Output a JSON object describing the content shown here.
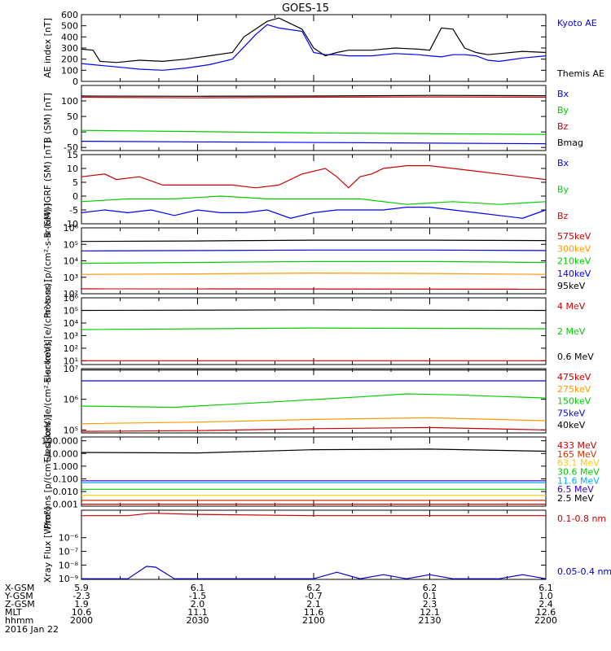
{
  "title": "GOES-15",
  "footer": {
    "row_labels": [
      "X-GSM",
      "Y-GSM",
      "Z-GSM",
      "MLT",
      "hhmm"
    ],
    "date": "2016 Jan 22",
    "columns": [
      [
        "5.9",
        "-2.3",
        "1.9",
        "10.6",
        "2000"
      ],
      [
        "6.1",
        "-1.5",
        "2.0",
        "11.1",
        "2030"
      ],
      [
        "6.2",
        "-0.7",
        "2.1",
        "11.6",
        "2100"
      ],
      [
        "6.2",
        "0.1",
        "2.3",
        "12.1",
        "2130"
      ],
      [
        "6.1",
        "1.0",
        "2.4",
        "12.6",
        "2200"
      ]
    ]
  },
  "chart_data": [
    {
      "type": "line",
      "ylabel": "AE index [nT]",
      "ylim": [
        0,
        600
      ],
      "yticks": [
        "0",
        "100",
        "200",
        "300",
        "400",
        "500",
        "600"
      ],
      "x_range": [
        "2000",
        "2200"
      ],
      "series": [
        {
          "name": "Kyoto AE",
          "color": "#0000ff",
          "x": [
            0,
            5,
            15,
            25,
            35,
            45,
            55,
            65,
            75,
            80,
            85,
            95,
            100,
            105,
            110,
            115,
            125,
            135,
            145,
            150,
            155,
            160,
            165,
            170,
            175,
            180,
            190,
            200
          ],
          "values": [
            160,
            150,
            130,
            110,
            100,
            120,
            150,
            200,
            420,
            510,
            480,
            450,
            260,
            240,
            240,
            230,
            230,
            250,
            240,
            230,
            220,
            240,
            240,
            230,
            190,
            180,
            210,
            230
          ]
        },
        {
          "name": "Themis AE",
          "color": "#000000",
          "x": [
            0,
            5,
            8,
            15,
            25,
            35,
            45,
            55,
            65,
            70,
            80,
            85,
            90,
            95,
            100,
            105,
            110,
            115,
            125,
            135,
            145,
            150,
            155,
            160,
            165,
            170,
            175,
            180,
            190,
            200
          ],
          "values": [
            290,
            280,
            180,
            170,
            190,
            180,
            200,
            230,
            260,
            400,
            540,
            570,
            520,
            470,
            300,
            230,
            260,
            280,
            280,
            300,
            290,
            280,
            480,
            470,
            300,
            260,
            240,
            250,
            270,
            260
          ]
        }
      ]
    },
    {
      "type": "line",
      "ylabel": "B (SM) [nT]",
      "ylim": [
        -60,
        150
      ],
      "yticks": [
        "-50",
        "0",
        "50",
        "100"
      ],
      "series": [
        {
          "name": "Bx",
          "color": "#0000ff",
          "x": [
            0,
            200
          ],
          "values": [
            -30,
            -38
          ]
        },
        {
          "name": "By",
          "color": "#00cc00",
          "x": [
            0,
            100,
            200
          ],
          "values": [
            5,
            -3,
            -8
          ]
        },
        {
          "name": "Bz",
          "color": "#cc0000",
          "x": [
            0,
            50,
            100,
            150,
            200
          ],
          "values": [
            112,
            110,
            112,
            113,
            112
          ]
        },
        {
          "name": "Bmag",
          "color": "#000000",
          "x": [
            0,
            50,
            100,
            150,
            200
          ],
          "values": [
            116,
            115,
            116,
            118,
            117
          ]
        }
      ]
    },
    {
      "type": "line",
      "ylabel": "B (SM)-IGRF (SM) [nT]",
      "ylim": [
        -10,
        15
      ],
      "yticks": [
        "-10",
        "-5",
        "0",
        "5",
        "10",
        "15"
      ],
      "series": [
        {
          "name": "Bx",
          "color": "#0000ff",
          "x": [
            0,
            10,
            20,
            30,
            40,
            50,
            60,
            70,
            80,
            90,
            100,
            110,
            120,
            130,
            140,
            150,
            160,
            170,
            180,
            190,
            200
          ],
          "values": [
            -6,
            -5,
            -6,
            -5,
            -7,
            -5,
            -6,
            -6,
            -5,
            -8,
            -6,
            -5,
            -5,
            -5,
            -4,
            -4,
            -5,
            -6,
            -7,
            -8,
            -5
          ]
        },
        {
          "name": "By",
          "color": "#00cc00",
          "x": [
            0,
            20,
            40,
            60,
            80,
            100,
            120,
            140,
            160,
            180,
            200
          ],
          "values": [
            -2,
            -1,
            -1,
            0,
            -1,
            -1,
            -1,
            -3,
            -2,
            -3,
            -2
          ]
        },
        {
          "name": "Bz",
          "color": "#cc0000",
          "x": [
            0,
            10,
            15,
            25,
            35,
            45,
            55,
            65,
            75,
            85,
            95,
            100,
            105,
            110,
            115,
            120,
            125,
            130,
            140,
            150,
            160,
            170,
            180,
            190,
            200
          ],
          "values": [
            7,
            8,
            6,
            7,
            4,
            4,
            4,
            4,
            3,
            4,
            8,
            9,
            10,
            7,
            3,
            7,
            8,
            10,
            11,
            11,
            10,
            9,
            8,
            7,
            6
          ]
        }
      ]
    },
    {
      "type": "line",
      "ylabel": "Protons [p/(cm²-s-sr-keV)]",
      "yscale": "log",
      "ylim": [
        100,
        1000000
      ],
      "yticks": [
        "10²",
        "10³",
        "10⁴",
        "10⁵",
        "10⁶"
      ],
      "series": [
        {
          "name": "575keV",
          "color": "#cc0000",
          "x": [
            0,
            200
          ],
          "values": [
            200,
            190
          ]
        },
        {
          "name": "300keV",
          "color": "#ff9900",
          "x": [
            0,
            50,
            100,
            150,
            200
          ],
          "values": [
            1500,
            1600,
            1800,
            1700,
            1500
          ]
        },
        {
          "name": "210keV",
          "color": "#00cc00",
          "x": [
            0,
            50,
            100,
            150,
            200
          ],
          "values": [
            7000,
            8000,
            9000,
            9000,
            8000
          ]
        },
        {
          "name": "140keV",
          "color": "#0000ff",
          "x": [
            0,
            50,
            100,
            150,
            200
          ],
          "values": [
            40000,
            42000,
            45000,
            45000,
            42000
          ]
        },
        {
          "name": "95keV",
          "color": "#000000",
          "x": [
            0,
            50,
            100,
            150,
            200
          ],
          "values": [
            150000,
            160000,
            180000,
            180000,
            170000
          ]
        }
      ]
    },
    {
      "type": "line",
      "ylabel": "Electrons [e/(cm²-s-sr)]",
      "yscale": "log",
      "ylim": [
        5,
        1000000
      ],
      "yticks": [
        "10¹",
        "10²",
        "10³",
        "10⁴",
        "10⁵",
        "10⁶"
      ],
      "series": [
        {
          "name": "4 MeV",
          "color": "#cc0000",
          "x": [
            0,
            200
          ],
          "values": [
            10,
            10
          ]
        },
        {
          "name": "2 MeV",
          "color": "#00cc00",
          "x": [
            0,
            100,
            200
          ],
          "values": [
            3000,
            4000,
            3500
          ]
        },
        {
          "name": "0.6 MeV",
          "color": "#000000",
          "x": [
            0,
            100,
            200
          ],
          "values": [
            100000,
            110000,
            100000
          ]
        }
      ]
    },
    {
      "type": "line",
      "ylabel": "Electrons [e/(cm²-s-sr-keV)]",
      "yscale": "log",
      "ylim": [
        80000,
        10000000
      ],
      "yticks": [
        "10⁵",
        "10⁶",
        "10⁷"
      ],
      "series": [
        {
          "name": "475keV",
          "color": "#cc0000",
          "x": [
            0,
            50,
            100,
            150,
            200
          ],
          "values": [
            90000,
            95000,
            110000,
            120000,
            100000
          ]
        },
        {
          "name": "275keV",
          "color": "#ff9900",
          "x": [
            0,
            50,
            100,
            150,
            200
          ],
          "values": [
            160000,
            180000,
            220000,
            250000,
            200000
          ]
        },
        {
          "name": "150keV",
          "color": "#00cc00",
          "x": [
            0,
            40,
            80,
            120,
            140,
            160,
            200
          ],
          "values": [
            600000,
            550000,
            800000,
            1200000,
            1500000,
            1400000,
            1100000
          ]
        },
        {
          "name": "75keV",
          "color": "#0000ff",
          "x": [
            0,
            200
          ],
          "values": [
            4000000,
            4000000
          ]
        },
        {
          "name": "40keV",
          "color": "#000000",
          "x": [
            0,
            200
          ],
          "values": [
            9000000,
            9000000
          ]
        }
      ]
    },
    {
      "type": "line",
      "ylabel": "Protons [p/(cm²-s-sr-keV)]",
      "yscale": "log",
      "ylim": [
        0.0007,
        200
      ],
      "yticks": [
        "0.001",
        "0.010",
        "0.100",
        "1.000",
        "10.000",
        "100.000"
      ],
      "series": [
        {
          "name": "433 MeV",
          "color": "#cc0000",
          "x": [
            0,
            200
          ],
          "values": [
            0.001,
            0.001
          ]
        },
        {
          "name": "165 MeV",
          "color": "#cc3300",
          "x": [
            0,
            200
          ],
          "values": [
            0.002,
            0.002
          ]
        },
        {
          "name": "63.1 MeV",
          "color": "#ffcc00",
          "x": [
            0,
            200
          ],
          "values": [
            0.005,
            0.005
          ]
        },
        {
          "name": "30.6 MeV",
          "color": "#00cc00",
          "x": [
            0,
            200
          ],
          "values": [
            0.015,
            0.015
          ]
        },
        {
          "name": "11.6 MeV",
          "color": "#00aaff",
          "x": [
            0,
            200
          ],
          "values": [
            0.05,
            0.05
          ]
        },
        {
          "name": "6.5 MeV",
          "color": "#3300cc",
          "x": [
            0,
            200
          ],
          "values": [
            0.07,
            0.07
          ]
        },
        {
          "name": "2.5 MeV",
          "color": "#000000",
          "x": [
            0,
            50,
            100,
            150,
            200
          ],
          "values": [
            12,
            11,
            20,
            22,
            15
          ]
        }
      ]
    },
    {
      "type": "line",
      "ylabel": "Xray Flux [W/m²]",
      "yscale": "log",
      "ylim": [
        9e-12,
        1e-06
      ],
      "yticks": [
        "10⁻⁹",
        "10⁻⁸",
        "10⁻⁷",
        "10⁻⁶"
      ],
      "series": [
        {
          "name": "0.1-0.8 nm",
          "color": "#cc0000",
          "x": [
            0,
            20,
            30,
            50,
            100,
            150,
            200
          ],
          "values": [
            4e-07,
            4e-07,
            6e-07,
            5e-07,
            4e-07,
            4e-07,
            4e-07
          ]
        },
        {
          "name": "0.05-0.4 nm",
          "color": "#0000cc",
          "x": [
            0,
            10,
            20,
            28,
            32,
            40,
            50,
            60,
            100,
            110,
            120,
            130,
            140,
            150,
            160,
            170,
            180,
            190,
            200
          ],
          "values": [
            1e-11,
            1e-11,
            1e-11,
            8e-11,
            7e-11,
            1e-11,
            1e-11,
            1e-11,
            1e-11,
            3e-11,
            1e-11,
            2e-11,
            1e-11,
            2e-11,
            1e-11,
            1e-11,
            1e-11,
            2e-11,
            1e-11
          ]
        }
      ]
    }
  ]
}
